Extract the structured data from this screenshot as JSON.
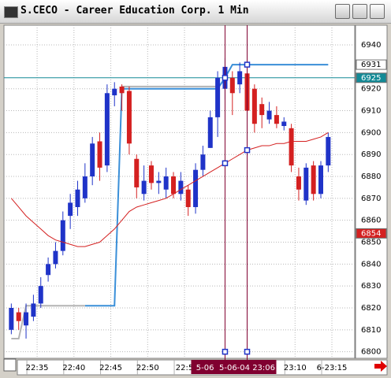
{
  "window": {
    "title": "S.CECO - Career Education Corp. 1 Min"
  },
  "chart_data": {
    "type": "candlestick",
    "open": [
      6810,
      6818,
      6812,
      6816,
      6822,
      6835,
      6840,
      6846,
      6862,
      6866,
      6870,
      6880,
      6896,
      6885,
      6917,
      6921,
      6919,
      6888,
      6872,
      6885,
      6877,
      6874,
      6880,
      6872,
      6874,
      6866,
      6883,
      6893,
      6907,
      6920,
      6925,
      6922,
      6927,
      6920,
      6913,
      6906,
      6908,
      6903,
      6902,
      6880,
      6869,
      6885,
      6872,
      6885
    ],
    "high": [
      6822,
      6820,
      6822,
      6826,
      6834,
      6843,
      6850,
      6864,
      6872,
      6878,
      6886,
      6898,
      6900,
      6922,
      6923,
      6922,
      6921,
      6890,
      6885,
      6887,
      6882,
      6884,
      6882,
      6882,
      6876,
      6886,
      6894,
      6910,
      6928,
      6934,
      6928,
      6932,
      6930,
      6922,
      6916,
      6914,
      6912,
      6907,
      6904,
      6884,
      6886,
      6887,
      6887,
      6900
    ],
    "low": [
      6808,
      6810,
      6806,
      6814,
      6820,
      6832,
      6838,
      6844,
      6856,
      6862,
      6868,
      6876,
      6878,
      6882,
      6912,
      6910,
      6890,
      6870,
      6869,
      6874,
      6872,
      6870,
      6870,
      6869,
      6862,
      6863,
      6880,
      6893,
      6898,
      6915,
      6908,
      6918,
      6905,
      6900,
      6902,
      6904,
      6902,
      6901,
      6882,
      6869,
      6867,
      6869,
      6870,
      6882
    ],
    "close": [
      6820,
      6814,
      6818,
      6822,
      6830,
      6840,
      6846,
      6860,
      6868,
      6874,
      6880,
      6895,
      6884,
      6918,
      6920,
      6918,
      6895,
      6875,
      6878,
      6877,
      6878,
      6880,
      6872,
      6878,
      6866,
      6883,
      6890,
      6907,
      6925,
      6930,
      6918,
      6928,
      6910,
      6904,
      6908,
      6910,
      6904,
      6905,
      6885,
      6874,
      6884,
      6872,
      6885,
      6898
    ],
    "up_color": "#1f33c8",
    "down_color": "#d42020",
    "xlim": [
      -1,
      46.6
    ],
    "xticks": [
      {
        "value": 3.5,
        "label": "22:35"
      },
      {
        "value": 8.5,
        "label": "22:40"
      },
      {
        "value": 13.5,
        "label": "22:45"
      },
      {
        "value": 18.5,
        "label": "22:50"
      },
      {
        "value": 23.5,
        "label": "22:5"
      },
      {
        "value": 38.5,
        "label": "23:10"
      },
      {
        "value": 43.5,
        "label": "6-23:15"
      }
    ],
    "ylim": [
      6797,
      6949
    ],
    "yticks": [
      6800,
      6810,
      6820,
      6830,
      6840,
      6850,
      6860,
      6870,
      6880,
      6890,
      6900,
      6910,
      6920,
      6940
    ],
    "grid": true,
    "series": [
      {
        "color": "#d42020",
        "values": [
          6870,
          6866,
          6862,
          6859,
          6856,
          6853,
          6851,
          6850,
          6849,
          6848,
          6848,
          6849,
          6850,
          6853,
          6856,
          6860,
          6864,
          6866,
          6867,
          6868,
          6869,
          6870,
          6872,
          6874,
          6876,
          6878,
          6880,
          6882,
          6884,
          6886,
          6888,
          6890,
          6892,
          6893,
          6894,
          6894,
          6895,
          6895,
          6896,
          6896,
          6896,
          6897,
          6898,
          6900
        ]
      },
      {
        "color": "#3a8fd8",
        "values": [
          null,
          null,
          null,
          null,
          null,
          null,
          null,
          null,
          null,
          null,
          6821,
          6821,
          6821,
          6821,
          6821,
          6920,
          6920,
          6920,
          6920,
          6920,
          6920,
          6920,
          6920,
          6920,
          6920,
          6920,
          6920,
          6920,
          6920,
          6925,
          6931,
          6931,
          6931,
          6931,
          6931,
          6931,
          6931,
          6931,
          6931,
          6931,
          6931,
          6931,
          6931,
          6931
        ]
      },
      {
        "color": "#b4b4b4",
        "values": [
          6806,
          6806,
          6821,
          6821,
          6821,
          6821,
          6821,
          6821,
          6821,
          6821,
          6821,
          null,
          null,
          null,
          null,
          6921,
          6921,
          6921,
          6921,
          6921,
          6921,
          6921,
          6921,
          6921,
          6921,
          6921,
          6921,
          6921,
          6921,
          null,
          null,
          null,
          null,
          null,
          null,
          null,
          null,
          null,
          null,
          null,
          null,
          null,
          null,
          null
        ]
      }
    ],
    "hline": {
      "value": 6925,
      "label": "6925",
      "color": "#138a96"
    },
    "price_marks": [
      {
        "value": 6931,
        "label": "6931",
        "color": "#ffffff"
      },
      {
        "value": 6854,
        "label": "6854",
        "color": "#d42020"
      }
    ],
    "cursor": {
      "x": [
        29,
        32
      ],
      "labels": [
        "5-06",
        "5-06-04 23:06"
      ],
      "color": "#800030"
    }
  }
}
